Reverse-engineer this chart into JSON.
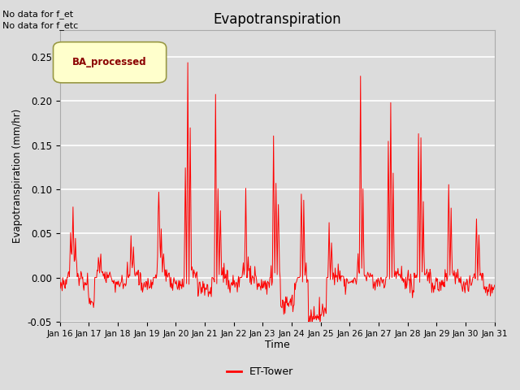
{
  "title": "Evapotranspiration",
  "xlabel": "Time",
  "ylabel": "Evapotranspiration (mm/hr)",
  "ylim": [
    -0.05,
    0.28
  ],
  "yticks": [
    -0.05,
    0.0,
    0.05,
    0.1,
    0.15,
    0.2,
    0.25
  ],
  "line_color": "red",
  "line_width": 0.7,
  "bg_color": "#dcdcdc",
  "plot_bg_color": "#dcdcdc",
  "legend_label": "BA_processed",
  "bottom_legend_label": "ET-Tower",
  "top_left_text1": "No data for f_et",
  "top_left_text2": "No data for f_etc",
  "x_tick_labels": [
    "Jan 16",
    "Jan 17",
    "Jan 18",
    "Jan 19",
    "Jan 20",
    "Jan 21",
    "Jan 22",
    "Jan 23",
    "Jan 24",
    "Jan 25",
    "Jan 26",
    "Jan 27",
    "Jan 28",
    "Jan 29",
    "Jan 30",
    "Jan 31"
  ],
  "seed": 12345
}
